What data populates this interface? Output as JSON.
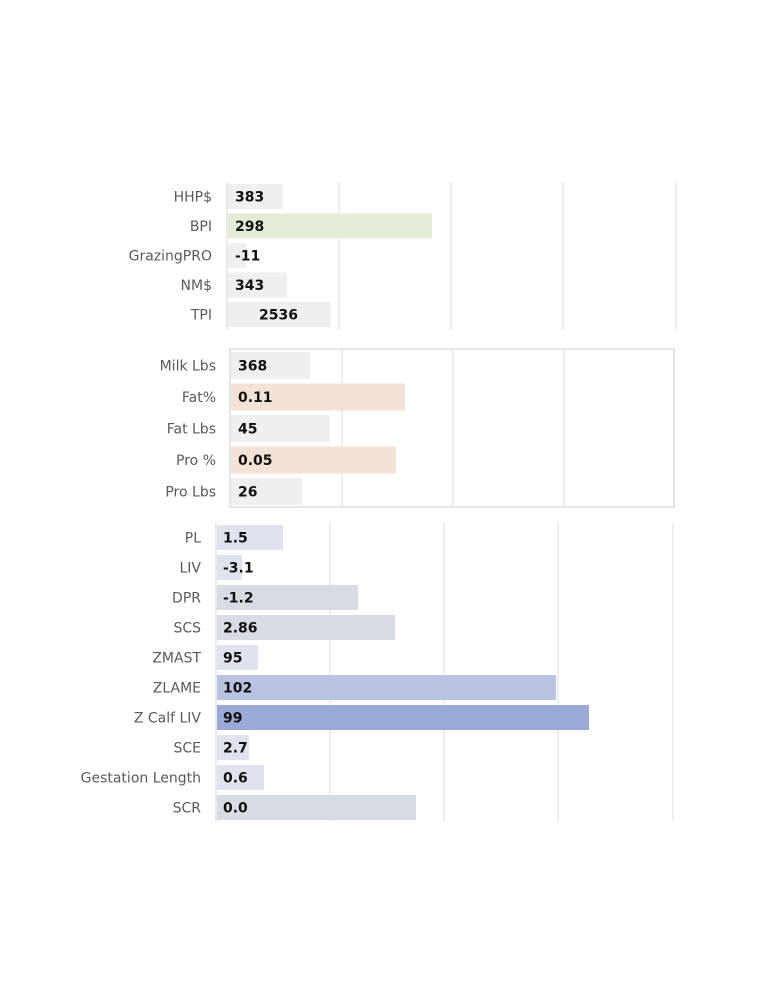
{
  "chart_data": [
    {
      "type": "bar",
      "orientation": "horizontal",
      "grid": true,
      "categories": [
        "HHP$",
        "BPI",
        "GrazingPRO",
        "NM$",
        "TPI"
      ],
      "values": [
        "383",
        "298",
        "-11",
        "343",
        "2536"
      ],
      "bar_colors": [
        "#efefef",
        "#e2ecd6",
        "#efefef",
        "#efefef",
        "#efefef"
      ]
    },
    {
      "type": "bar",
      "orientation": "horizontal",
      "grid": true,
      "categories": [
        "Milk Lbs",
        "Fat%",
        "Fat Lbs",
        "Pro %",
        "Pro Lbs"
      ],
      "values": [
        "368",
        "0.11",
        "45",
        "0.05",
        "26"
      ],
      "bar_colors": [
        "#efefef",
        "#f3e3d6",
        "#efefef",
        "#f3e3d6",
        "#efefef"
      ]
    },
    {
      "type": "bar",
      "orientation": "horizontal",
      "grid": true,
      "categories": [
        "PL",
        "LIV",
        "DPR",
        "SCS",
        "ZMAST",
        "ZLAME",
        "Z Calf LIV",
        "SCE",
        "Gestation Length",
        "SCR"
      ],
      "values": [
        "1.5",
        "-3.1",
        "-1.2",
        "2.86",
        "95",
        "102",
        "99",
        "2.7",
        "0.6",
        "0.0"
      ],
      "bar_colors": [
        "#dfe3f0",
        "#dfe3f0",
        "#d7dbe3",
        "#d7dbe3",
        "#dfe3f0",
        "#b8c3e1",
        "#9aa9d5",
        "#dfe3f0",
        "#dfe3f0",
        "#d7dbe3"
      ]
    }
  ]
}
